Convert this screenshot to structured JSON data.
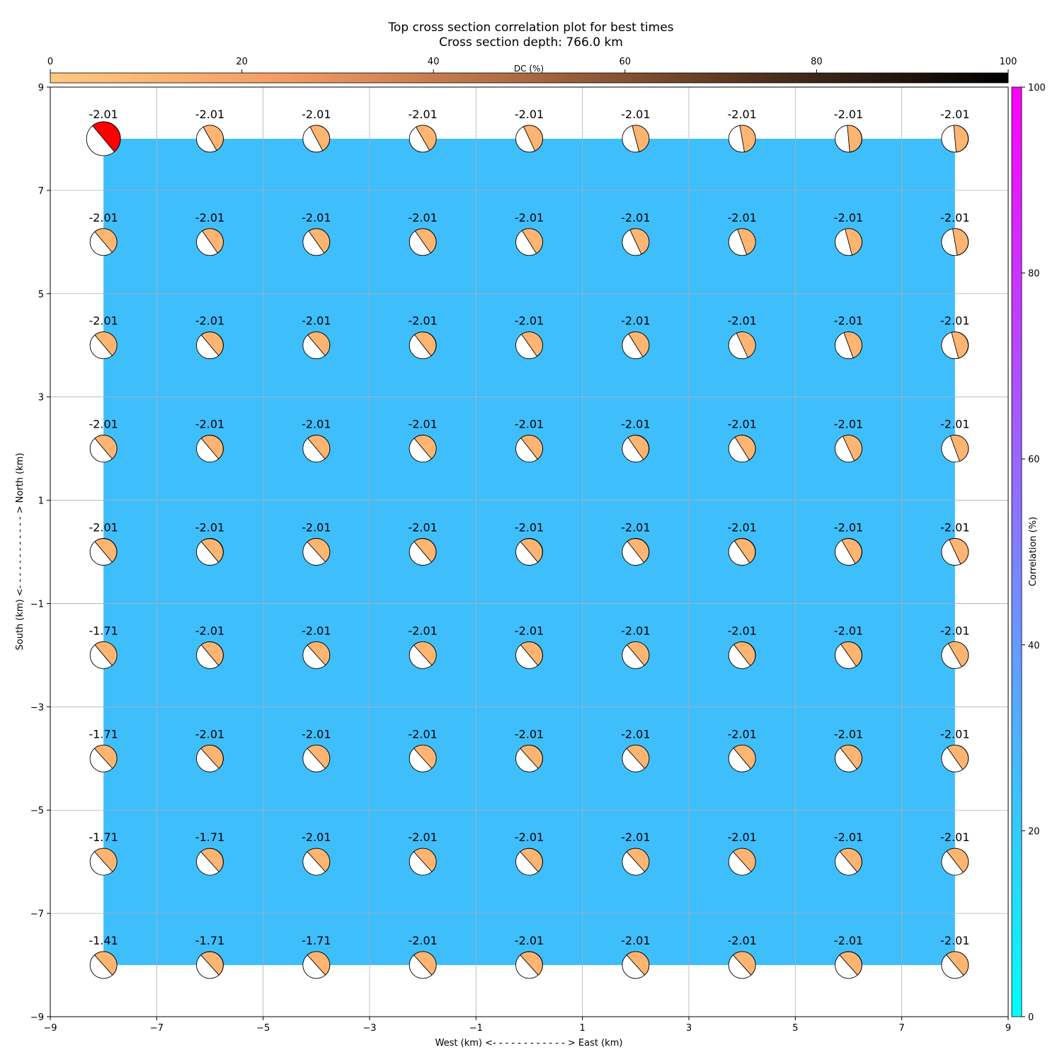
{
  "title": "Top cross section correlation plot for best times",
  "subtitle": "Cross section depth: 766.0 km",
  "chart_data": {
    "type": "scatter",
    "xlabel": "West (km) <- - - - - - - - - - - - > East (km)",
    "ylabel": "South (km) <- - - - - - - - - - - - > North (km)",
    "xlim": [
      -9,
      9
    ],
    "ylim": [
      -9,
      9
    ],
    "xticks": [
      "−9",
      "−7",
      "−5",
      "−3",
      "−1",
      "1",
      "3",
      "5",
      "7",
      "9"
    ],
    "yticks": [
      "−9",
      "−7",
      "−5",
      "−3",
      "−1",
      "1",
      "3",
      "5",
      "7",
      "9"
    ],
    "grid": true,
    "background_field": {
      "x_range": [
        -8,
        8
      ],
      "y_range": [
        -8,
        8
      ],
      "correlation_percent": 25,
      "color": "#3fbefc"
    },
    "x": [
      -8,
      -6,
      -4,
      -2,
      0,
      2,
      4,
      6,
      8
    ],
    "y": [
      8,
      6,
      4,
      2,
      0,
      -2,
      -4,
      -6,
      -8
    ],
    "time_labels": [
      [
        "-2.01",
        "-2.01",
        "-2.01",
        "-2.01",
        "-2.01",
        "-2.01",
        "-2.01",
        "-2.01",
        "-2.01"
      ],
      [
        "-2.01",
        "-2.01",
        "-2.01",
        "-2.01",
        "-2.01",
        "-2.01",
        "-2.01",
        "-2.01",
        "-2.01"
      ],
      [
        "-2.01",
        "-2.01",
        "-2.01",
        "-2.01",
        "-2.01",
        "-2.01",
        "-2.01",
        "-2.01",
        "-2.01"
      ],
      [
        "-2.01",
        "-2.01",
        "-2.01",
        "-2.01",
        "-2.01",
        "-2.01",
        "-2.01",
        "-2.01",
        "-2.01"
      ],
      [
        "-2.01",
        "-2.01",
        "-2.01",
        "-2.01",
        "-2.01",
        "-2.01",
        "-2.01",
        "-2.01",
        "-2.01"
      ],
      [
        "-1.71",
        "-2.01",
        "-2.01",
        "-2.01",
        "-2.01",
        "-2.01",
        "-2.01",
        "-2.01",
        "-2.01"
      ],
      [
        "-1.71",
        "-2.01",
        "-2.01",
        "-2.01",
        "-2.01",
        "-2.01",
        "-2.01",
        "-2.01",
        "-2.01"
      ],
      [
        "-1.71",
        "-1.71",
        "-2.01",
        "-2.01",
        "-2.01",
        "-2.01",
        "-2.01",
        "-2.01",
        "-2.01"
      ],
      [
        "-1.41",
        "-1.71",
        "-1.71",
        "-2.01",
        "-2.01",
        "-2.01",
        "-2.01",
        "-2.01",
        "-2.01"
      ]
    ],
    "mechanism_strike_deg": [
      [
        50,
        60,
        62,
        60,
        65,
        75,
        80,
        85,
        85
      ],
      [
        50,
        55,
        55,
        55,
        58,
        65,
        70,
        75,
        80
      ],
      [
        50,
        50,
        50,
        52,
        55,
        58,
        65,
        70,
        75
      ],
      [
        50,
        50,
        50,
        50,
        52,
        55,
        58,
        65,
        70
      ],
      [
        50,
        50,
        48,
        50,
        50,
        52,
        55,
        60,
        65
      ],
      [
        50,
        50,
        48,
        48,
        50,
        50,
        52,
        55,
        60
      ],
      [
        48,
        48,
        48,
        48,
        48,
        48,
        50,
        52,
        55
      ],
      [
        48,
        48,
        48,
        48,
        48,
        48,
        48,
        50,
        52
      ],
      [
        48,
        48,
        48,
        48,
        48,
        48,
        48,
        48,
        50
      ]
    ],
    "best_solution": {
      "x": -8,
      "y": 8,
      "color": "#ff0000"
    },
    "mechanism_color": "#ffb572",
    "dc_colorbar": {
      "label": "DC (%)",
      "range": [
        0,
        100
      ],
      "ticks": [
        "0",
        "20",
        "40",
        "60",
        "80",
        "100"
      ],
      "colors": [
        "#ffc97e",
        "#f49a63",
        "#a9683f",
        "#4c2f1c",
        "#000000"
      ]
    },
    "correlation_colorbar": {
      "label": "Correlation (%)",
      "range": [
        0,
        100
      ],
      "ticks": [
        "0",
        "20",
        "40",
        "60",
        "80",
        "100"
      ],
      "colors": [
        "#00ffff",
        "#ff00ff"
      ]
    }
  }
}
